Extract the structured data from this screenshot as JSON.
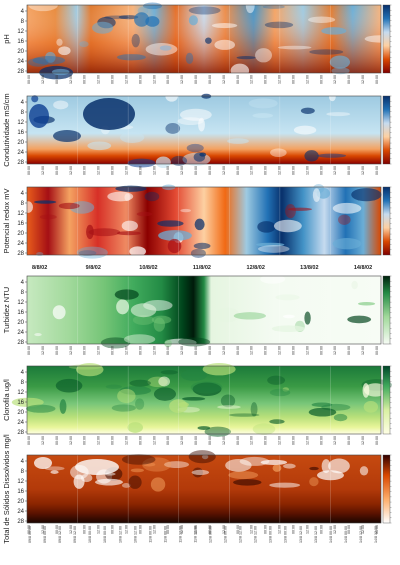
{
  "depth_ticks": [
    "4",
    "8",
    "12",
    "16",
    "20",
    "24",
    "28"
  ],
  "time_ticks": [
    "00:00",
    "12:00",
    "00:00",
    "12:00",
    "00:00",
    "12:00",
    "00:00",
    "12:00",
    "00:00",
    "12:00",
    "00:00",
    "12:00",
    "00:00"
  ],
  "date_labels": [
    "8/8/02",
    "9/8/02",
    "10/8/02",
    "11/8/02",
    "12/8/02",
    "13/8/02",
    "14/8/02"
  ],
  "datetime_ticks": [
    "09/8 00:00",
    "09/8 12:00",
    "10/8 00:00",
    "10/8 12:00",
    "11/8 00:00",
    "11/8 12:00",
    "12/8 00:00",
    "12/8 12:00",
    "13/8 00:00",
    "13/8 12:00",
    "14/8 00:00",
    "14/8 12:00"
  ],
  "chart_data": [
    {
      "type": "heatmap",
      "ylabel": "pH",
      "colormap": [
        "#08306b",
        "#2171b5",
        "#6baed6",
        "#c6dbef",
        "#fdd0a2",
        "#f16913",
        "#d94801",
        "#7f0000"
      ],
      "y_ticks": [
        "4",
        "8",
        "12",
        "16",
        "20",
        "24",
        "28"
      ]
    },
    {
      "type": "heatmap",
      "ylabel": "Condutividade mS/cm",
      "colormap": [
        "#08306b",
        "#2171b5",
        "#6baed6",
        "#c6dbef",
        "#fdd0a2",
        "#f16913",
        "#d94801",
        "#7f0000"
      ],
      "y_ticks": [
        "4",
        "8",
        "12",
        "16",
        "20",
        "24",
        "28"
      ]
    },
    {
      "type": "heatmap",
      "ylabel": "Potencial redox mV",
      "colormap": [
        "#08306b",
        "#2171b5",
        "#6baed6",
        "#c6dbef",
        "#fdd0a2",
        "#f16913",
        "#d94801",
        "#7f0000"
      ],
      "y_ticks": [
        "4",
        "8",
        "12",
        "16",
        "20",
        "24",
        "28"
      ]
    },
    {
      "type": "heatmap",
      "ylabel": "Turbidez NTU",
      "colormap": [
        "#f7fcf5",
        "#c7e9c0",
        "#74c476",
        "#238b45",
        "#00441b",
        "#000000"
      ],
      "y_ticks": [
        "4",
        "8",
        "12",
        "16",
        "20",
        "24",
        "28"
      ]
    },
    {
      "type": "heatmap",
      "ylabel": "Clorofila ug/l",
      "colormap": [
        "#ffffe5",
        "#d9f0a3",
        "#78c679",
        "#238443",
        "#004529"
      ],
      "y_ticks": [
        "4",
        "8",
        "12",
        "16",
        "20",
        "24",
        "28"
      ]
    },
    {
      "type": "heatmap",
      "ylabel": "Total de Sólidos Dissolvidos mg/l",
      "colormap": [
        "#ffffff",
        "#fdae6b",
        "#e6550d",
        "#a63603",
        "#000000"
      ],
      "y_ticks": [
        "4",
        "8",
        "12",
        "16",
        "20",
        "24",
        "28"
      ]
    }
  ]
}
